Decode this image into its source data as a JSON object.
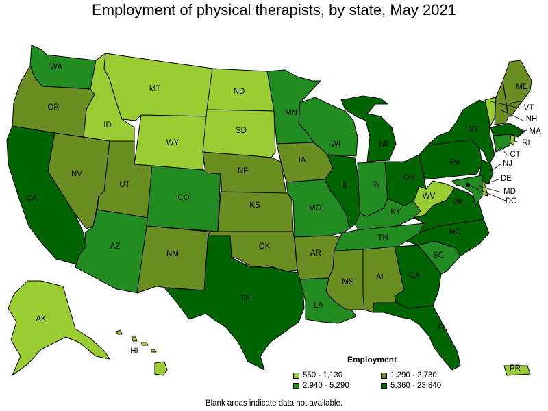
{
  "title": "Employment of physical therapists, by state, May 2021",
  "legend": {
    "title": "Employment",
    "items": [
      {
        "range": "550 - 1,130",
        "color": "#9acd32"
      },
      {
        "range": "1,290 - 2,730",
        "color": "#6b8e23"
      },
      {
        "range": "2,940 - 5,290",
        "color": "#228b22"
      },
      {
        "range": "5,360 - 23,840",
        "color": "#006400"
      }
    ]
  },
  "note": "Blank areas indicate data not available.",
  "states": [
    {
      "abbr": "WA",
      "class": 3
    },
    {
      "abbr": "OR",
      "class": 2
    },
    {
      "abbr": "CA",
      "class": 4
    },
    {
      "abbr": "NV",
      "class": 2
    },
    {
      "abbr": "ID",
      "class": 1
    },
    {
      "abbr": "MT",
      "class": 1
    },
    {
      "abbr": "WY",
      "class": 1
    },
    {
      "abbr": "UT",
      "class": 2
    },
    {
      "abbr": "AZ",
      "class": 3
    },
    {
      "abbr": "CO",
      "class": 3
    },
    {
      "abbr": "NM",
      "class": 2
    },
    {
      "abbr": "ND",
      "class": 1
    },
    {
      "abbr": "SD",
      "class": 1
    },
    {
      "abbr": "NE",
      "class": 2
    },
    {
      "abbr": "KS",
      "class": 2
    },
    {
      "abbr": "OK",
      "class": 2
    },
    {
      "abbr": "TX",
      "class": 4
    },
    {
      "abbr": "MN",
      "class": 3
    },
    {
      "abbr": "IA",
      "class": 2
    },
    {
      "abbr": "MO",
      "class": 3
    },
    {
      "abbr": "AR",
      "class": 2
    },
    {
      "abbr": "LA",
      "class": 3
    },
    {
      "abbr": "WI",
      "class": 3
    },
    {
      "abbr": "IL",
      "class": 4
    },
    {
      "abbr": "MI",
      "class": 4
    },
    {
      "abbr": "IN",
      "class": 3
    },
    {
      "abbr": "OH",
      "class": 4
    },
    {
      "abbr": "KY",
      "class": 3
    },
    {
      "abbr": "TN",
      "class": 3
    },
    {
      "abbr": "MS",
      "class": 2
    },
    {
      "abbr": "AL",
      "class": 2
    },
    {
      "abbr": "GA",
      "class": 4
    },
    {
      "abbr": "FL",
      "class": 4
    },
    {
      "abbr": "SC",
      "class": 3
    },
    {
      "abbr": "NC",
      "class": 4
    },
    {
      "abbr": "VA",
      "class": 4
    },
    {
      "abbr": "WV",
      "class": 1
    },
    {
      "abbr": "PA",
      "class": 4
    },
    {
      "abbr": "NY",
      "class": 4
    },
    {
      "abbr": "VT",
      "class": 1
    },
    {
      "abbr": "NH",
      "class": 2
    },
    {
      "abbr": "ME",
      "class": 2
    },
    {
      "abbr": "MA",
      "class": 4
    },
    {
      "abbr": "RI",
      "class": 1
    },
    {
      "abbr": "CT",
      "class": 3
    },
    {
      "abbr": "NJ",
      "class": 4
    },
    {
      "abbr": "DE",
      "class": 1
    },
    {
      "abbr": "MD",
      "class": 3
    },
    {
      "abbr": "DC",
      "class": 4
    },
    {
      "abbr": "AK",
      "class": 1
    },
    {
      "abbr": "HI",
      "class": 1
    },
    {
      "abbr": "PR",
      "class": 1
    }
  ]
}
